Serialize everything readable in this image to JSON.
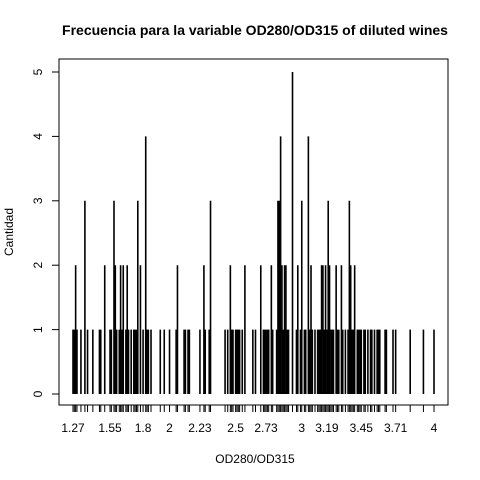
{
  "chart_data": {
    "type": "bar",
    "title": "Frecuencia para la variable OD280/OD315 of diluted wines",
    "xlabel": "OD280/OD315",
    "ylabel": "Cantidad",
    "ylim": [
      0,
      5
    ],
    "y_ticks": [
      "0",
      "1",
      "2",
      "3",
      "4",
      "5"
    ],
    "x_tick_labels": [
      "1.27",
      "1.55",
      "1.8",
      "2",
      "2.23",
      "2.5",
      "2.73",
      "3",
      "3.19",
      "3.45",
      "3.71",
      "4"
    ],
    "grid": false,
    "bars": [
      {
        "x": 1.27,
        "y": 1
      },
      {
        "x": 1.28,
        "y": 1
      },
      {
        "x": 1.29,
        "y": 2
      },
      {
        "x": 1.3,
        "y": 1
      },
      {
        "x": 1.33,
        "y": 1
      },
      {
        "x": 1.36,
        "y": 3
      },
      {
        "x": 1.38,
        "y": 1
      },
      {
        "x": 1.42,
        "y": 1
      },
      {
        "x": 1.47,
        "y": 1
      },
      {
        "x": 1.48,
        "y": 1
      },
      {
        "x": 1.51,
        "y": 2
      },
      {
        "x": 1.55,
        "y": 1
      },
      {
        "x": 1.56,
        "y": 1
      },
      {
        "x": 1.58,
        "y": 3
      },
      {
        "x": 1.59,
        "y": 2
      },
      {
        "x": 1.6,
        "y": 1
      },
      {
        "x": 1.62,
        "y": 1
      },
      {
        "x": 1.63,
        "y": 2
      },
      {
        "x": 1.64,
        "y": 1
      },
      {
        "x": 1.65,
        "y": 2
      },
      {
        "x": 1.67,
        "y": 1
      },
      {
        "x": 1.68,
        "y": 2
      },
      {
        "x": 1.69,
        "y": 1
      },
      {
        "x": 1.71,
        "y": 1
      },
      {
        "x": 1.73,
        "y": 1
      },
      {
        "x": 1.74,
        "y": 1
      },
      {
        "x": 1.75,
        "y": 1
      },
      {
        "x": 1.76,
        "y": 3
      },
      {
        "x": 1.78,
        "y": 2
      },
      {
        "x": 1.8,
        "y": 1
      },
      {
        "x": 1.82,
        "y": 4
      },
      {
        "x": 1.83,
        "y": 1
      },
      {
        "x": 1.84,
        "y": 1
      },
      {
        "x": 1.86,
        "y": 1
      },
      {
        "x": 1.93,
        "y": 1
      },
      {
        "x": 1.96,
        "y": 1
      },
      {
        "x": 2.0,
        "y": 1
      },
      {
        "x": 2.05,
        "y": 1
      },
      {
        "x": 2.06,
        "y": 2
      },
      {
        "x": 2.11,
        "y": 1
      },
      {
        "x": 2.12,
        "y": 1
      },
      {
        "x": 2.14,
        "y": 1
      },
      {
        "x": 2.15,
        "y": 1
      },
      {
        "x": 2.23,
        "y": 1
      },
      {
        "x": 2.26,
        "y": 2
      },
      {
        "x": 2.27,
        "y": 1
      },
      {
        "x": 2.3,
        "y": 1
      },
      {
        "x": 2.31,
        "y": 3
      },
      {
        "x": 2.42,
        "y": 1
      },
      {
        "x": 2.44,
        "y": 1
      },
      {
        "x": 2.46,
        "y": 2
      },
      {
        "x": 2.47,
        "y": 1
      },
      {
        "x": 2.48,
        "y": 1
      },
      {
        "x": 2.5,
        "y": 1
      },
      {
        "x": 2.51,
        "y": 1
      },
      {
        "x": 2.52,
        "y": 1
      },
      {
        "x": 2.53,
        "y": 1
      },
      {
        "x": 2.55,
        "y": 1
      },
      {
        "x": 2.57,
        "y": 2
      },
      {
        "x": 2.63,
        "y": 1
      },
      {
        "x": 2.65,
        "y": 1
      },
      {
        "x": 2.69,
        "y": 2
      },
      {
        "x": 2.71,
        "y": 1
      },
      {
        "x": 2.72,
        "y": 1
      },
      {
        "x": 2.73,
        "y": 1
      },
      {
        "x": 2.74,
        "y": 1
      },
      {
        "x": 2.75,
        "y": 1
      },
      {
        "x": 2.77,
        "y": 2
      },
      {
        "x": 2.78,
        "y": 1
      },
      {
        "x": 2.81,
        "y": 1
      },
      {
        "x": 2.82,
        "y": 3
      },
      {
        "x": 2.83,
        "y": 3
      },
      {
        "x": 2.84,
        "y": 4
      },
      {
        "x": 2.85,
        "y": 2
      },
      {
        "x": 2.86,
        "y": 1
      },
      {
        "x": 2.87,
        "y": 2
      },
      {
        "x": 2.88,
        "y": 2
      },
      {
        "x": 2.89,
        "y": 1
      },
      {
        "x": 2.9,
        "y": 1
      },
      {
        "x": 2.93,
        "y": 5
      },
      {
        "x": 2.96,
        "y": 1
      },
      {
        "x": 2.97,
        "y": 2
      },
      {
        "x": 2.99,
        "y": 1
      },
      {
        "x": 3.0,
        "y": 3
      },
      {
        "x": 3.02,
        "y": 1
      },
      {
        "x": 3.03,
        "y": 1
      },
      {
        "x": 3.05,
        "y": 4
      },
      {
        "x": 3.06,
        "y": 1
      },
      {
        "x": 3.07,
        "y": 2
      },
      {
        "x": 3.08,
        "y": 1
      },
      {
        "x": 3.1,
        "y": 1
      },
      {
        "x": 3.12,
        "y": 1
      },
      {
        "x": 3.13,
        "y": 1
      },
      {
        "x": 3.14,
        "y": 1
      },
      {
        "x": 3.15,
        "y": 2
      },
      {
        "x": 3.16,
        "y": 2
      },
      {
        "x": 3.17,
        "y": 1
      },
      {
        "x": 3.18,
        "y": 2
      },
      {
        "x": 3.19,
        "y": 1
      },
      {
        "x": 3.2,
        "y": 3
      },
      {
        "x": 3.21,
        "y": 2
      },
      {
        "x": 3.22,
        "y": 1
      },
      {
        "x": 3.23,
        "y": 1
      },
      {
        "x": 3.24,
        "y": 1
      },
      {
        "x": 3.26,
        "y": 2
      },
      {
        "x": 3.27,
        "y": 1
      },
      {
        "x": 3.28,
        "y": 1
      },
      {
        "x": 3.3,
        "y": 2
      },
      {
        "x": 3.31,
        "y": 1
      },
      {
        "x": 3.33,
        "y": 1
      },
      {
        "x": 3.35,
        "y": 1
      },
      {
        "x": 3.36,
        "y": 3
      },
      {
        "x": 3.37,
        "y": 2
      },
      {
        "x": 3.38,
        "y": 1
      },
      {
        "x": 3.39,
        "y": 1
      },
      {
        "x": 3.4,
        "y": 2
      },
      {
        "x": 3.42,
        "y": 1
      },
      {
        "x": 3.43,
        "y": 1
      },
      {
        "x": 3.44,
        "y": 1
      },
      {
        "x": 3.45,
        "y": 1
      },
      {
        "x": 3.47,
        "y": 1
      },
      {
        "x": 3.48,
        "y": 1
      },
      {
        "x": 3.5,
        "y": 1
      },
      {
        "x": 3.52,
        "y": 1
      },
      {
        "x": 3.53,
        "y": 1
      },
      {
        "x": 3.55,
        "y": 1
      },
      {
        "x": 3.57,
        "y": 1
      },
      {
        "x": 3.58,
        "y": 1
      },
      {
        "x": 3.59,
        "y": 1
      },
      {
        "x": 3.63,
        "y": 1
      },
      {
        "x": 3.64,
        "y": 1
      },
      {
        "x": 3.69,
        "y": 1
      },
      {
        "x": 3.71,
        "y": 1
      },
      {
        "x": 3.82,
        "y": 1
      },
      {
        "x": 3.92,
        "y": 1
      },
      {
        "x": 4.0,
        "y": 1
      }
    ]
  }
}
